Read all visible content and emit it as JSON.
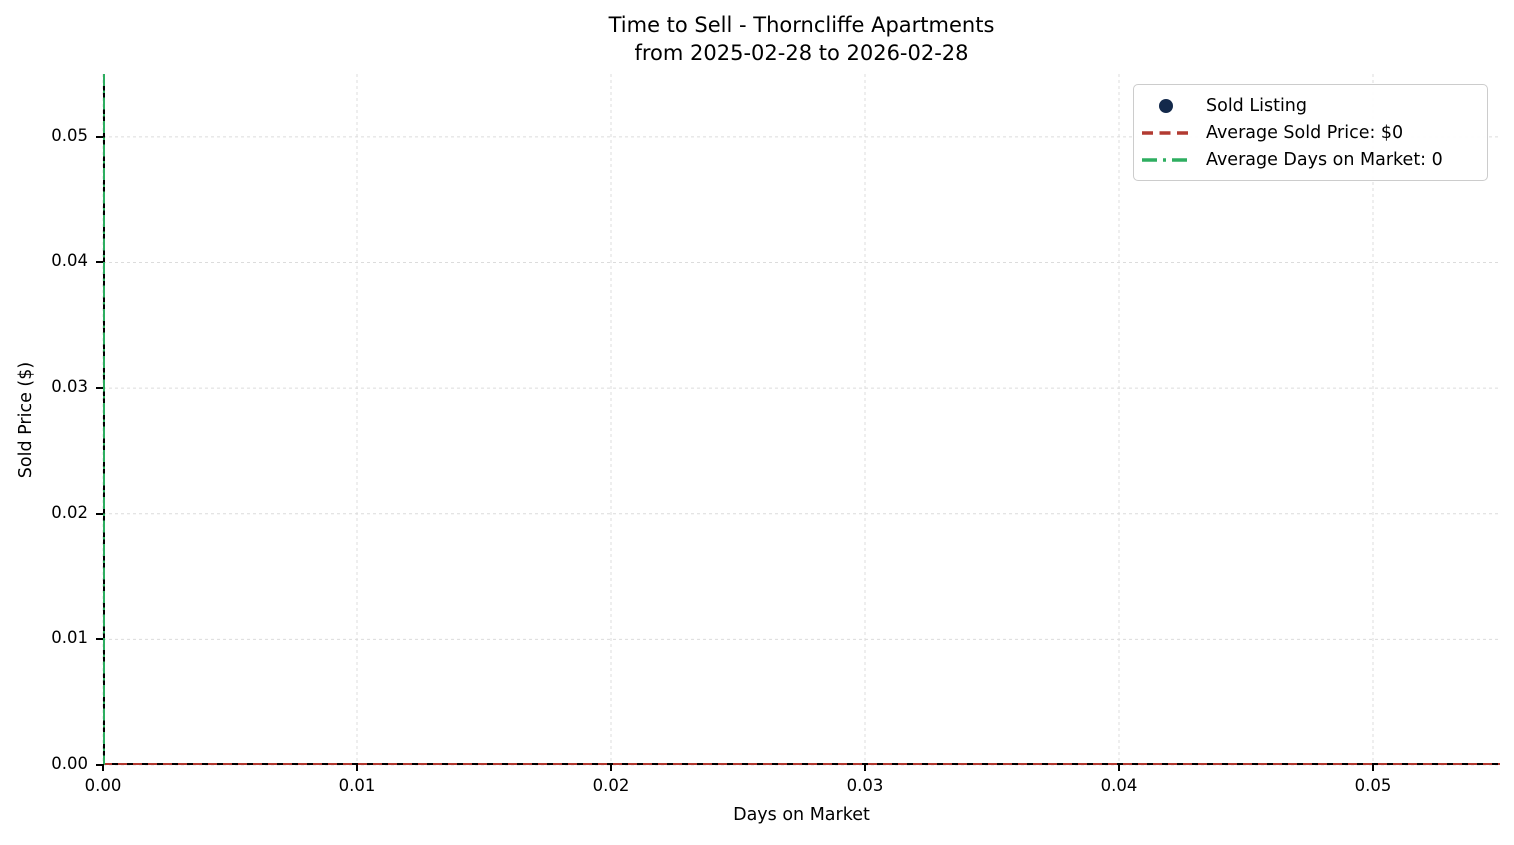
{
  "title": {
    "line1": "Time to Sell - Thorncliffe Apartments",
    "line2": "from 2025-02-28 to 2026-02-28"
  },
  "chart_data": {
    "type": "scatter",
    "title": "Time to Sell - Thorncliffe Apartments\nfrom 2025-02-28 to 2026-02-28",
    "xlabel": "Days on Market",
    "ylabel": "Sold Price ($)",
    "xlim": [
      0,
      0.055
    ],
    "ylim": [
      0,
      0.055
    ],
    "x_ticks": [
      0,
      0.01,
      0.02,
      0.03,
      0.04,
      0.05
    ],
    "y_ticks": [
      0,
      0.01,
      0.02,
      0.03,
      0.04,
      0.05
    ],
    "x_tick_labels": [
      "0.00",
      "0.01",
      "0.02",
      "0.03",
      "0.04",
      "0.05"
    ],
    "y_tick_labels": [
      "0.00",
      "0.01",
      "0.02",
      "0.03",
      "0.04",
      "0.05"
    ],
    "grid": true,
    "points": [],
    "average_sold_price": 0,
    "average_days_on_market": 0,
    "reference_lines": [
      {
        "name": "average-sold-price-line",
        "orientation": "horizontal",
        "value": 0,
        "style": "dashed",
        "color": "#b23a31"
      },
      {
        "name": "average-days-on-market-line",
        "orientation": "vertical",
        "value": 0,
        "style": "dash-dot",
        "color": "#2eae60"
      }
    ],
    "legend": {
      "position": "upper-right",
      "entries": [
        {
          "label": "Sold Listing",
          "marker": "circle",
          "color": "#13294b"
        },
        {
          "label": "Average Sold Price: $0",
          "marker": "dashed-line",
          "color": "#b23a31"
        },
        {
          "label": "Average Days on Market: 0",
          "marker": "dash-dot-line",
          "color": "#2eae60"
        }
      ]
    }
  },
  "colors": {
    "sold_listing": "#13294b",
    "average_sold_price": "#b23a31",
    "average_days_on_market": "#2eae60",
    "grid": "#dcdcdc",
    "spine": "#000000",
    "legend_border": "#cccccc"
  }
}
